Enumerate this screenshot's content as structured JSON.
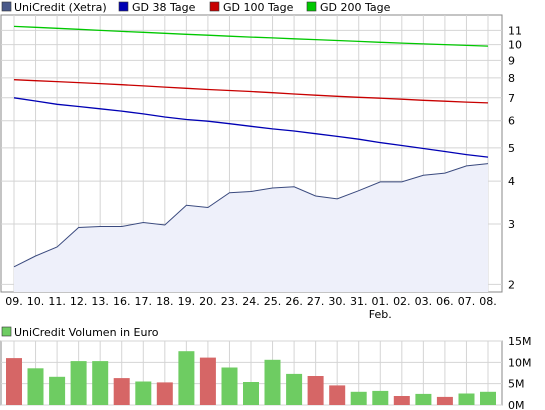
{
  "colors": {
    "price_line": "#3a4a7e",
    "price_fill": "#eef0fa",
    "gd38": "#0000b4",
    "gd100": "#c80000",
    "gd200": "#00c800",
    "vol_up": "#6ecc62",
    "vol_down": "#d66666",
    "grid": "#d4d4d4",
    "legend_price": "#4a5a8a"
  },
  "chart_data": [
    {
      "type": "line",
      "y_scale": "log",
      "ylim": [
        1.9,
        12.2
      ],
      "grid": true,
      "legend_placement": "top-left",
      "x": [
        "09.",
        "10.",
        "11.",
        "12.",
        "13.",
        "16.",
        "17.",
        "18.",
        "19.",
        "20.",
        "23.",
        "24.",
        "25.",
        "26.",
        "27.",
        "30.",
        "31.",
        "01.",
        "02.",
        "03.",
        "06.",
        "07.",
        "08."
      ],
      "x_sublabels": {
        "01.": "Feb."
      },
      "y_ticks": [
        2,
        3,
        4,
        5,
        6,
        7,
        8,
        9,
        10,
        11
      ],
      "series": [
        {
          "name": "UniCredit (Xetra)",
          "values": [
            2.25,
            2.42,
            2.57,
            2.93,
            2.95,
            2.95,
            3.03,
            2.98,
            3.4,
            3.35,
            3.7,
            3.73,
            3.82,
            3.85,
            3.62,
            3.55,
            3.75,
            3.98,
            3.98,
            4.16,
            4.22,
            4.43,
            4.5
          ]
        },
        {
          "name": "GD 38 Tage",
          "values": [
            7.0,
            6.85,
            6.7,
            6.6,
            6.5,
            6.4,
            6.28,
            6.15,
            6.05,
            5.98,
            5.88,
            5.78,
            5.68,
            5.6,
            5.5,
            5.4,
            5.3,
            5.18,
            5.08,
            4.98,
            4.88,
            4.78,
            4.7
          ]
        },
        {
          "name": "GD 100 Tage",
          "values": [
            7.9,
            7.85,
            7.8,
            7.75,
            7.7,
            7.64,
            7.58,
            7.52,
            7.46,
            7.4,
            7.35,
            7.3,
            7.24,
            7.18,
            7.12,
            7.07,
            7.02,
            6.98,
            6.93,
            6.88,
            6.84,
            6.8,
            6.76
          ]
        },
        {
          "name": "GD 200 Tage",
          "values": [
            11.3,
            11.23,
            11.16,
            11.08,
            11.0,
            10.93,
            10.86,
            10.79,
            10.72,
            10.65,
            10.58,
            10.52,
            10.46,
            10.4,
            10.34,
            10.28,
            10.22,
            10.16,
            10.1,
            10.05,
            10.0,
            9.95,
            9.9
          ]
        }
      ]
    },
    {
      "type": "bar",
      "y_scale": "linear",
      "ylim": [
        0,
        15
      ],
      "y_ticks": [
        "0M",
        "5M",
        "10M",
        "15M"
      ],
      "y_tick_values": [
        0,
        5,
        10,
        15
      ],
      "legend_placement": "top-left",
      "series": [
        {
          "name": "UniCredit Volumen in Euro",
          "values": [
            11,
            8.6,
            6.6,
            10.3,
            10.3,
            6.3,
            5.5,
            5.3,
            12.6,
            11.1,
            8.8,
            5.4,
            10.6,
            7.3,
            6.8,
            4.6,
            3.1,
            3.3,
            2.1,
            2.6,
            1.9,
            2.7,
            3.1
          ],
          "direction": [
            "down",
            "up",
            "up",
            "up",
            "up",
            "down",
            "up",
            "down",
            "up",
            "down",
            "up",
            "up",
            "up",
            "up",
            "down",
            "down",
            "up",
            "up",
            "down",
            "up",
            "down",
            "up",
            "up"
          ]
        }
      ]
    }
  ]
}
